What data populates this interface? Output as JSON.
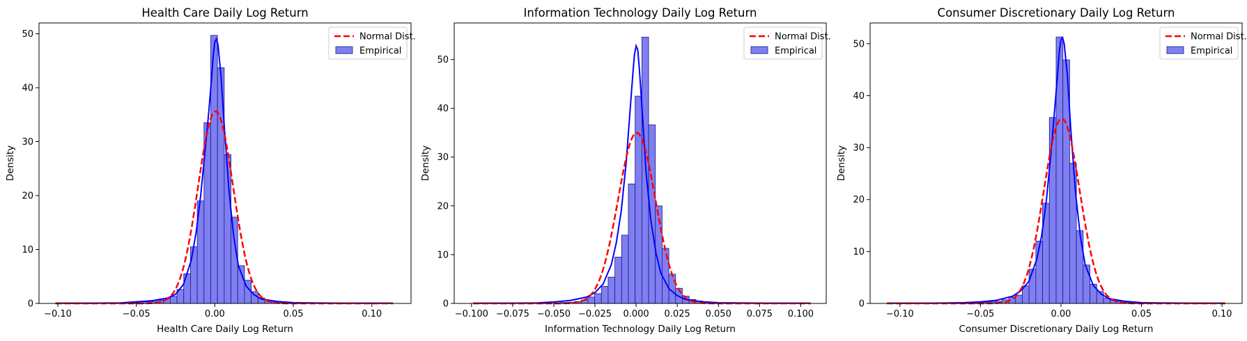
{
  "colors": {
    "hist_fill": "#7f7ff2",
    "hist_edge": "#1a1a80",
    "kde_line": "#0000ff",
    "normal_line": "#ff0000"
  },
  "legend": {
    "placement": "upper-right",
    "normal_label": "Normal Dist.",
    "empirical_label": "Empirical"
  },
  "chart_data": [
    {
      "type": "histogram",
      "title": "Health Care Daily Log Return",
      "xlabel": "Health Care Daily Log Return",
      "ylabel": "Density",
      "xlim": [
        -0.112,
        0.125
      ],
      "ylim": [
        0,
        52
      ],
      "xticks": [
        -0.1,
        -0.05,
        0.0,
        0.05,
        0.1
      ],
      "xticklabels": [
        "−0.10",
        "−0.05",
        "0.00",
        "0.05",
        "0.10"
      ],
      "yticks": [
        0,
        10,
        20,
        30,
        40,
        50
      ],
      "yticklabels": [
        "0",
        "10",
        "20",
        "30",
        "40",
        "50"
      ],
      "bin_edges": [
        -0.1015,
        -0.0972,
        -0.0929,
        -0.0886,
        -0.0843,
        -0.08,
        -0.0757,
        -0.0714,
        -0.0671,
        -0.0628,
        -0.0585,
        -0.0542,
        -0.0499,
        -0.0456,
        -0.0413,
        -0.037,
        -0.0327,
        -0.0284,
        -0.0241,
        -0.0198,
        -0.0155,
        -0.0112,
        -0.0069,
        -0.0026,
        0.0017,
        0.006,
        0.0103,
        0.0146,
        0.0189,
        0.0232,
        0.0275,
        0.0318,
        0.0361,
        0.0404,
        0.0447,
        0.049,
        0.0533,
        0.0576,
        0.0619,
        0.0662,
        0.0705,
        0.0748,
        0.0791,
        0.0834,
        0.0877,
        0.092,
        0.0963,
        0.1006,
        0.1049,
        0.1092,
        0.1135
      ],
      "bin_density": [
        0.05,
        0,
        0,
        0,
        0,
        0,
        0,
        0,
        0,
        0,
        0,
        0.1,
        0.15,
        0.3,
        0.35,
        0.6,
        0.9,
        1.3,
        2.6,
        5.5,
        10.5,
        19.0,
        33.5,
        49.7,
        43.7,
        27.6,
        16.0,
        7.0,
        4.3,
        2.2,
        1.0,
        0.6,
        0.4,
        0.2,
        0.15,
        0.1,
        0.05,
        0.05,
        0.05,
        0,
        0,
        0,
        0,
        0,
        0,
        0,
        0,
        0,
        0,
        0.05
      ],
      "kde": {
        "x": [
          -0.1015,
          -0.08,
          -0.06,
          -0.05,
          -0.04,
          -0.03,
          -0.025,
          -0.02,
          -0.015,
          -0.012,
          -0.009,
          -0.006,
          -0.004,
          -0.002,
          -0.001,
          0.0,
          0.001,
          0.002,
          0.004,
          0.006,
          0.009,
          0.012,
          0.015,
          0.02,
          0.025,
          0.03,
          0.04,
          0.05,
          0.06,
          0.08,
          0.1135
        ],
        "y": [
          0.05,
          0.05,
          0.1,
          0.3,
          0.5,
          1.0,
          1.7,
          3.5,
          8.0,
          13.0,
          20.0,
          29.0,
          35.0,
          42.0,
          46.0,
          48.5,
          49.0,
          48.0,
          42.0,
          33.0,
          21.0,
          12.5,
          7.0,
          3.2,
          1.6,
          0.8,
          0.35,
          0.15,
          0.1,
          0.05,
          0.05
        ]
      },
      "normal": {
        "mean": 0.0005,
        "sd": 0.0112,
        "x_range": [
          -0.1015,
          0.1135
        ]
      }
    },
    {
      "type": "histogram",
      "title": "Information Technology Daily Log Return",
      "xlabel": "Information Technology Daily Log Return",
      "ylabel": "Density",
      "xlim": [
        -0.1105,
        0.1155
      ],
      "ylim": [
        0,
        57.5
      ],
      "xticks": [
        -0.1,
        -0.075,
        -0.05,
        -0.025,
        0.0,
        0.025,
        0.05,
        0.075,
        0.1
      ],
      "xticklabels": [
        "−0.100",
        "−0.075",
        "−0.050",
        "−0.025",
        "0.000",
        "0.025",
        "0.050",
        "0.075",
        "0.100"
      ],
      "yticks": [
        0,
        10,
        20,
        30,
        40,
        50
      ],
      "yticklabels": [
        "0",
        "10",
        "20",
        "30",
        "40",
        "50"
      ],
      "bin_edges": [
        -0.099,
        -0.0949,
        -0.0908,
        -0.0867,
        -0.0826,
        -0.0785,
        -0.0744,
        -0.0703,
        -0.0662,
        -0.0621,
        -0.058,
        -0.0539,
        -0.0498,
        -0.0457,
        -0.0416,
        -0.0375,
        -0.0334,
        -0.0293,
        -0.0252,
        -0.0211,
        -0.017,
        -0.0129,
        -0.0088,
        -0.0047,
        -0.0006,
        0.0035,
        0.0076,
        0.0117,
        0.0158,
        0.0199,
        0.024,
        0.0281,
        0.0322,
        0.0363,
        0.0404,
        0.0445,
        0.0486,
        0.0527,
        0.0568,
        0.0609,
        0.065,
        0.0691,
        0.0732,
        0.0773,
        0.0814,
        0.0855,
        0.0896,
        0.0937,
        0.0978,
        0.1019,
        0.106
      ],
      "bin_density": [
        0.05,
        0,
        0,
        0,
        0,
        0,
        0,
        0,
        0,
        0,
        0,
        0,
        0.1,
        0.2,
        0.25,
        0.4,
        0.7,
        1.3,
        2.0,
        3.5,
        5.4,
        9.5,
        14.0,
        24.5,
        42.5,
        54.6,
        36.6,
        20.0,
        11.3,
        6.0,
        3.1,
        1.5,
        0.8,
        0.5,
        0.3,
        0.2,
        0.15,
        0.1,
        0.1,
        0.05,
        0.05,
        0,
        0,
        0,
        0,
        0,
        0,
        0,
        0,
        0.05
      ],
      "kde": {
        "x": [
          -0.099,
          -0.08,
          -0.06,
          -0.05,
          -0.04,
          -0.03,
          -0.025,
          -0.02,
          -0.015,
          -0.012,
          -0.009,
          -0.006,
          -0.004,
          -0.002,
          -0.001,
          0.0,
          0.001,
          0.002,
          0.004,
          0.006,
          0.009,
          0.012,
          0.015,
          0.02,
          0.025,
          0.03,
          0.04,
          0.05,
          0.06,
          0.08,
          0.106
        ],
        "y": [
          0.05,
          0.05,
          0.1,
          0.3,
          0.6,
          1.3,
          2.2,
          4.0,
          8.0,
          12.5,
          19.0,
          29.0,
          38.0,
          47.0,
          51.0,
          52.8,
          52.0,
          48.0,
          38.0,
          27.0,
          17.0,
          10.5,
          6.2,
          3.0,
          1.6,
          0.8,
          0.35,
          0.15,
          0.1,
          0.05,
          0.05
        ]
      },
      "normal": {
        "mean": 0.0004,
        "sd": 0.0114,
        "x_range": [
          -0.099,
          0.106
        ]
      }
    },
    {
      "type": "histogram",
      "title": "Consumer Discretionary Daily Log Return",
      "xlabel": "Consumer Discretionary Daily Log Return",
      "ylabel": "Density",
      "xlim": [
        -0.1185,
        0.1125
      ],
      "ylim": [
        0,
        54
      ],
      "xticks": [
        -0.1,
        -0.05,
        0.0,
        0.05,
        0.1
      ],
      "xticklabels": [
        "−0.10",
        "−0.05",
        "0.00",
        "0.05",
        "0.10"
      ],
      "yticks": [
        0,
        10,
        20,
        30,
        40,
        50
      ],
      "yticklabels": [
        "0",
        "10",
        "20",
        "30",
        "40",
        "50"
      ],
      "bin_edges": [
        -0.108,
        -0.1038,
        -0.0996,
        -0.0954,
        -0.0912,
        -0.087,
        -0.0828,
        -0.0786,
        -0.0744,
        -0.0702,
        -0.066,
        -0.0618,
        -0.0576,
        -0.0534,
        -0.0492,
        -0.045,
        -0.0408,
        -0.0366,
        -0.0324,
        -0.0282,
        -0.024,
        -0.0198,
        -0.0156,
        -0.0114,
        -0.0072,
        -0.003,
        0.0012,
        0.0054,
        0.0096,
        0.0138,
        0.018,
        0.0222,
        0.0264,
        0.0306,
        0.0348,
        0.039,
        0.0432,
        0.0474,
        0.0516,
        0.0558,
        0.06,
        0.0642,
        0.0684,
        0.0726,
        0.0768,
        0.081,
        0.0852,
        0.0894,
        0.0936,
        0.0978,
        0.102
      ],
      "bin_density": [
        0.05,
        0,
        0,
        0,
        0,
        0,
        0,
        0,
        0,
        0,
        0,
        0,
        0.1,
        0.15,
        0.2,
        0.3,
        0.4,
        0.7,
        1.2,
        1.6,
        3.4,
        6.6,
        12.0,
        19.3,
        35.8,
        51.3,
        46.9,
        27.0,
        14.0,
        7.4,
        3.7,
        2.3,
        1.0,
        0.6,
        0.4,
        0.2,
        0.15,
        0.1,
        0.05,
        0.05,
        0,
        0,
        0,
        0,
        0,
        0,
        0,
        0,
        0,
        0.05
      ],
      "kde": {
        "x": [
          -0.108,
          -0.08,
          -0.06,
          -0.05,
          -0.04,
          -0.03,
          -0.025,
          -0.02,
          -0.015,
          -0.012,
          -0.009,
          -0.006,
          -0.004,
          -0.002,
          -0.001,
          0.0,
          0.001,
          0.002,
          0.004,
          0.006,
          0.009,
          0.012,
          0.015,
          0.02,
          0.025,
          0.03,
          0.04,
          0.05,
          0.06,
          0.08,
          0.102
        ],
        "y": [
          0.05,
          0.05,
          0.15,
          0.3,
          0.6,
          1.4,
          2.4,
          4.2,
          8.5,
          13.0,
          20.0,
          29.5,
          37.0,
          44.5,
          48.5,
          50.8,
          51.2,
          50.0,
          44.0,
          34.0,
          21.5,
          13.0,
          7.5,
          3.5,
          1.8,
          0.9,
          0.4,
          0.15,
          0.1,
          0.05,
          0.05
        ]
      },
      "normal": {
        "mean": 0.0005,
        "sd": 0.0112,
        "x_range": [
          -0.108,
          0.102
        ]
      }
    }
  ]
}
